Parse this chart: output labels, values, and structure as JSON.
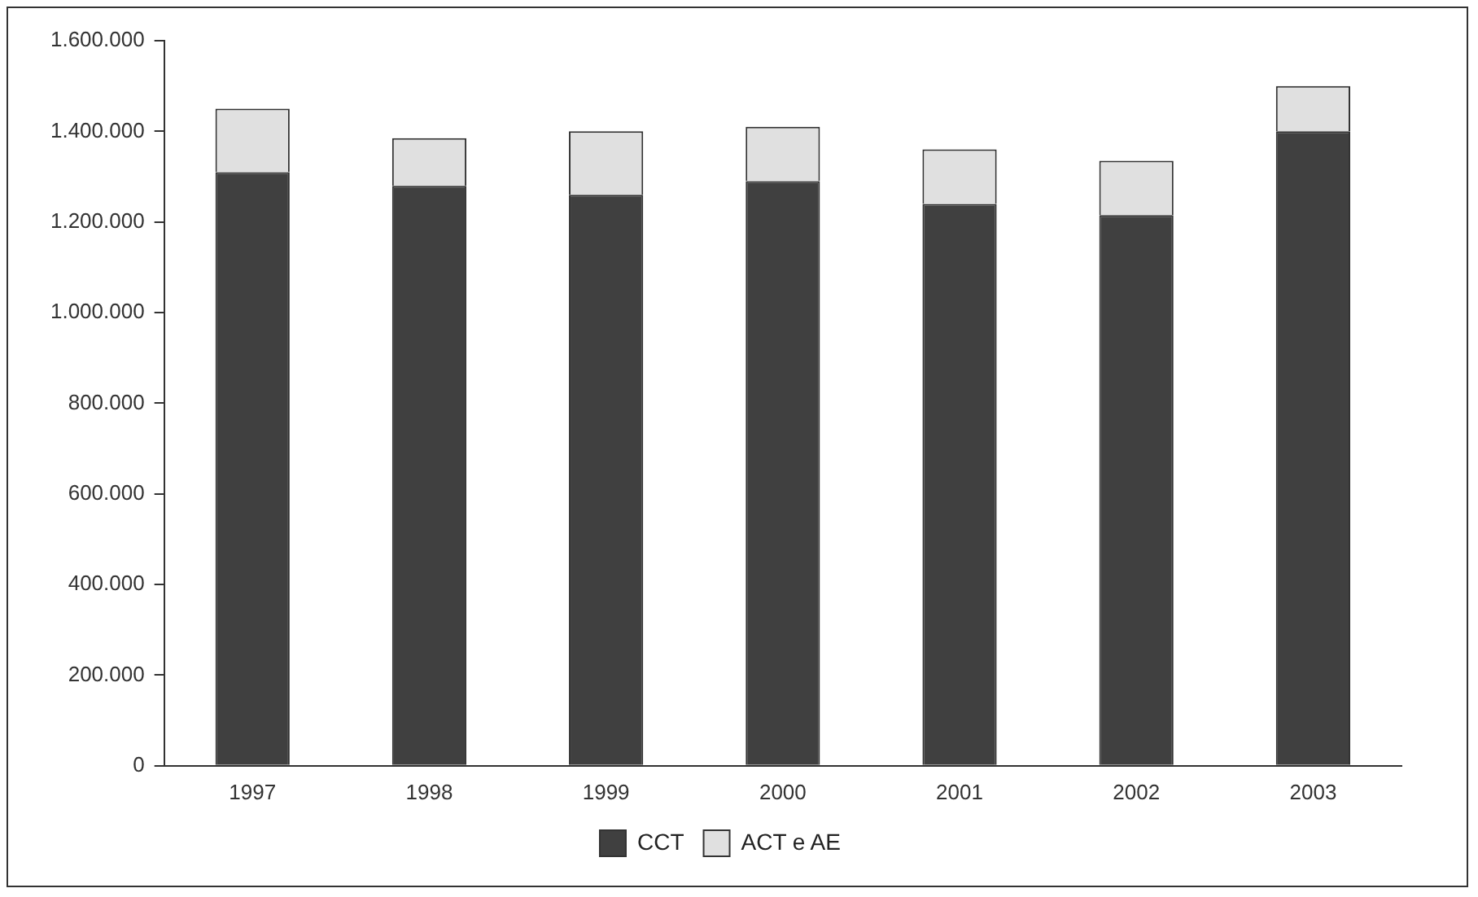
{
  "chart_data": {
    "type": "bar",
    "stacked": true,
    "categories": [
      "1997",
      "1998",
      "1999",
      "2000",
      "2001",
      "2002",
      "2003"
    ],
    "series": [
      {
        "name": "CCT",
        "color": "#404040",
        "values": [
          1310000,
          1280000,
          1260000,
          1290000,
          1240000,
          1215000,
          1400000
        ]
      },
      {
        "name": "ACT e AE",
        "color": "#e0e0e0",
        "values": [
          140000,
          105000,
          140000,
          120000,
          120000,
          120000,
          100000
        ]
      }
    ],
    "ylim": [
      0,
      1600000
    ],
    "yticks": [
      {
        "value": 0,
        "label": "0"
      },
      {
        "value": 200000,
        "label": "200.000"
      },
      {
        "value": 400000,
        "label": "400.000"
      },
      {
        "value": 600000,
        "label": "600.000"
      },
      {
        "value": 800000,
        "label": "800.000"
      },
      {
        "value": 1000000,
        "label": "1.000.000"
      },
      {
        "value": 1200000,
        "label": "1.200.000"
      },
      {
        "value": 1400000,
        "label": "1.400.000"
      },
      {
        "value": 1600000,
        "label": "1.600.000"
      }
    ],
    "grid": false,
    "legend": "bottom"
  }
}
